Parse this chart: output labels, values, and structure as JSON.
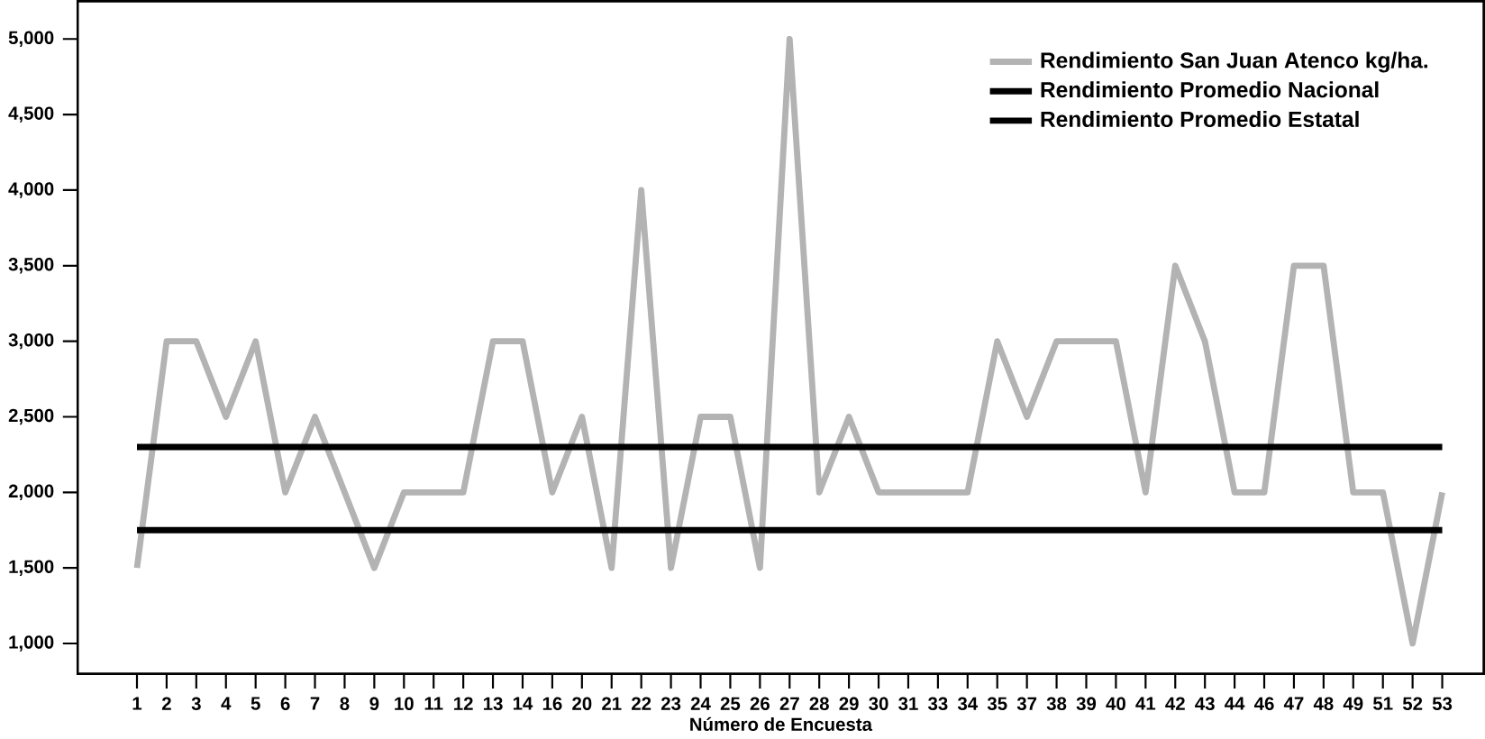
{
  "chart_data": {
    "type": "line",
    "xlabel": "Número de Encuesta",
    "categories": [
      "1",
      "2",
      "3",
      "4",
      "5",
      "6",
      "7",
      "8",
      "9",
      "10",
      "11",
      "12",
      "13",
      "14",
      "16",
      "20",
      "21",
      "22",
      "23",
      "24",
      "25",
      "26",
      "27",
      "28",
      "29",
      "30",
      "31",
      "33",
      "34",
      "35",
      "37",
      "38",
      "39",
      "40",
      "41",
      "42",
      "43",
      "44",
      "46",
      "47",
      "48",
      "49",
      "51",
      "52",
      "53"
    ],
    "series": [
      {
        "name": "Rendimiento San Juan Atenco kg/ha.",
        "color": "#b3b3b3",
        "values": [
          1500,
          3000,
          3000,
          2500,
          3000,
          2000,
          2500,
          2000,
          1500,
          2000,
          2000,
          2000,
          3000,
          3000,
          2000,
          2500,
          1500,
          4000,
          1500,
          2500,
          2500,
          1500,
          5000,
          2000,
          2500,
          2000,
          2000,
          2000,
          2000,
          3000,
          2500,
          3000,
          3000,
          3000,
          2000,
          3500,
          3000,
          2000,
          2000,
          3500,
          3500,
          2000,
          2000,
          1000,
          2000
        ]
      },
      {
        "name": "Rendimiento Promedio Nacional",
        "color": "#000000",
        "values": [
          2300,
          2300,
          2300,
          2300,
          2300,
          2300,
          2300,
          2300,
          2300,
          2300,
          2300,
          2300,
          2300,
          2300,
          2300,
          2300,
          2300,
          2300,
          2300,
          2300,
          2300,
          2300,
          2300,
          2300,
          2300,
          2300,
          2300,
          2300,
          2300,
          2300,
          2300,
          2300,
          2300,
          2300,
          2300,
          2300,
          2300,
          2300,
          2300,
          2300,
          2300,
          2300,
          2300,
          2300,
          2300
        ]
      },
      {
        "name": "Rendimiento Promedio Estatal",
        "color": "#000000",
        "values": [
          1750,
          1750,
          1750,
          1750,
          1750,
          1750,
          1750,
          1750,
          1750,
          1750,
          1750,
          1750,
          1750,
          1750,
          1750,
          1750,
          1750,
          1750,
          1750,
          1750,
          1750,
          1750,
          1750,
          1750,
          1750,
          1750,
          1750,
          1750,
          1750,
          1750,
          1750,
          1750,
          1750,
          1750,
          1750,
          1750,
          1750,
          1750,
          1750,
          1750,
          1750,
          1750,
          1750,
          1750,
          1750
        ]
      }
    ],
    "ylim": [
      800,
      5250
    ],
    "yticks": [
      {
        "value": 1000,
        "label": "1,000"
      },
      {
        "value": 1500,
        "label": "1,500"
      },
      {
        "value": 2000,
        "label": "2,000"
      },
      {
        "value": 2500,
        "label": "2,500"
      },
      {
        "value": 3000,
        "label": "3,000"
      },
      {
        "value": 3500,
        "label": "3,500"
      },
      {
        "value": 4000,
        "label": "4,000"
      },
      {
        "value": 4500,
        "label": "4,500"
      },
      {
        "value": 5000,
        "label": "5,000"
      }
    ],
    "grid": false,
    "legend": "top right",
    "marker": "none",
    "line_style": "solid"
  }
}
